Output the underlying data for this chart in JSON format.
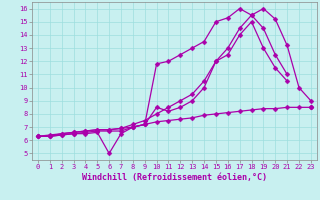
{
  "xlabel": "Windchill (Refroidissement éolien,°C)",
  "background_color": "#c8f0f0",
  "line_color": "#aa00aa",
  "xlim": [
    -0.5,
    23.5
  ],
  "ylim": [
    4.5,
    16.5
  ],
  "xticks": [
    0,
    1,
    2,
    3,
    4,
    5,
    6,
    7,
    8,
    9,
    10,
    11,
    12,
    13,
    14,
    15,
    16,
    17,
    18,
    19,
    20,
    21,
    22,
    23
  ],
  "yticks": [
    5,
    6,
    7,
    8,
    9,
    10,
    11,
    12,
    13,
    14,
    15,
    16
  ],
  "lines": [
    {
      "x": [
        0,
        1,
        2,
        3,
        4,
        5,
        6,
        7,
        8,
        9,
        10,
        11,
        12,
        13,
        14,
        15,
        16,
        17,
        18,
        19,
        20,
        21,
        22,
        23
      ],
      "y": [
        6.3,
        6.3,
        6.4,
        6.5,
        6.5,
        6.6,
        5.0,
        6.5,
        7.0,
        7.2,
        11.8,
        12.0,
        12.5,
        13.0,
        13.5,
        15.0,
        15.3,
        16.0,
        15.5,
        14.5,
        12.5,
        11.0,
        null,
        8.5
      ]
    },
    {
      "x": [
        0,
        1,
        2,
        3,
        4,
        5,
        6,
        7,
        8,
        9,
        10,
        11,
        12,
        13,
        14,
        15,
        16,
        17,
        18,
        19,
        20,
        21,
        22,
        23
      ],
      "y": [
        6.3,
        6.3,
        6.4,
        6.5,
        6.6,
        6.7,
        6.7,
        6.7,
        7.0,
        7.2,
        8.5,
        8.2,
        8.5,
        9.0,
        10.0,
        12.0,
        12.5,
        14.0,
        15.0,
        13.0,
        11.5,
        10.5,
        null,
        8.5
      ]
    },
    {
      "x": [
        0,
        1,
        2,
        3,
        4,
        5,
        6,
        7,
        8,
        9,
        10,
        11,
        12,
        13,
        14,
        15,
        16,
        17,
        18,
        19,
        20,
        21,
        22,
        23
      ],
      "y": [
        6.3,
        6.3,
        6.5,
        6.6,
        6.7,
        6.8,
        6.8,
        6.9,
        7.2,
        7.5,
        8.0,
        8.5,
        9.0,
        9.5,
        10.5,
        12.0,
        13.0,
        14.5,
        15.5,
        16.0,
        15.2,
        13.2,
        10.0,
        9.0
      ]
    },
    {
      "x": [
        0,
        1,
        2,
        3,
        4,
        5,
        6,
        7,
        8,
        9,
        10,
        11,
        12,
        13,
        14,
        15,
        16,
        17,
        18,
        19,
        20,
        21,
        22,
        23
      ],
      "y": [
        6.3,
        6.4,
        6.5,
        6.6,
        6.7,
        6.8,
        6.8,
        6.9,
        7.0,
        7.2,
        7.4,
        7.5,
        7.6,
        7.7,
        7.9,
        8.0,
        8.1,
        8.2,
        8.3,
        8.4,
        8.4,
        8.5,
        8.5,
        8.5
      ]
    }
  ],
  "marker": "D",
  "markersize": 2.5,
  "linewidth": 0.9,
  "grid_color": "#9ddede",
  "tick_fontsize": 5.0,
  "xlabel_fontsize": 6.0
}
